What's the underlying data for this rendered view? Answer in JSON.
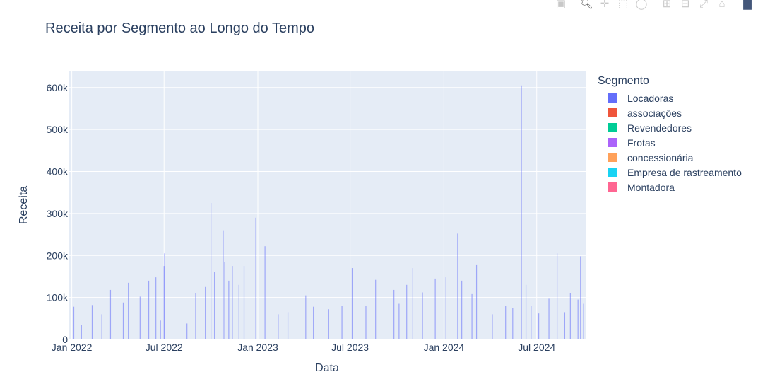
{
  "toolbar": {
    "buttons": [
      {
        "icon": "camera-icon",
        "label": "Download plot as a png"
      },
      {
        "icon": "zoom-icon",
        "label": "Zoom"
      },
      {
        "icon": "pan-icon",
        "label": "Pan"
      },
      {
        "icon": "box-select-icon",
        "label": "Box Select"
      },
      {
        "icon": "lasso-select-icon",
        "label": "Lasso Select"
      },
      {
        "icon": "zoom-in-icon",
        "label": "Zoom in"
      },
      {
        "icon": "zoom-out-icon",
        "label": "Zoom out"
      },
      {
        "icon": "autoscale-icon",
        "label": "Autoscale"
      },
      {
        "icon": "reset-axes-icon",
        "label": "Reset axes"
      },
      {
        "icon": "plotly-logo-icon",
        "label": "Produced with Plotly"
      }
    ]
  },
  "chart_data": {
    "type": "bar",
    "title": "Receita por Segmento ao Longo do Tempo",
    "xlabel": "Data",
    "ylabel": "Receita",
    "xlim": [
      "2021-12-27",
      "2024-10-05"
    ],
    "ylim": [
      0,
      640000
    ],
    "x_ticks": [
      {
        "date": "2022-01-01",
        "label": "Jan 2022"
      },
      {
        "date": "2022-07-01",
        "label": "Jul 2022"
      },
      {
        "date": "2023-01-01",
        "label": "Jan 2023"
      },
      {
        "date": "2023-07-01",
        "label": "Jul 2023"
      },
      {
        "date": "2024-01-01",
        "label": "Jan 2024"
      },
      {
        "date": "2024-07-01",
        "label": "Jul 2024"
      }
    ],
    "y_ticks": [
      {
        "value": 0,
        "label": "0"
      },
      {
        "value": 100000,
        "label": "100k"
      },
      {
        "value": 200000,
        "label": "200k"
      },
      {
        "value": 300000,
        "label": "300k"
      },
      {
        "value": 400000,
        "label": "400k"
      },
      {
        "value": 500000,
        "label": "500k"
      },
      {
        "value": 600000,
        "label": "600k"
      }
    ],
    "grid": true,
    "legend": {
      "title": "Segmento",
      "placement": "right"
    },
    "series": [
      {
        "name": "Locadoras",
        "color": "#636efa",
        "points": [
          {
            "x": "2022-01-05",
            "y": 78000
          },
          {
            "x": "2022-01-20",
            "y": 35000
          },
          {
            "x": "2022-02-10",
            "y": 82000
          },
          {
            "x": "2022-03-01",
            "y": 60000
          },
          {
            "x": "2022-03-18",
            "y": 118000
          },
          {
            "x": "2022-04-12",
            "y": 88000
          },
          {
            "x": "2022-04-22",
            "y": 135000
          },
          {
            "x": "2022-05-15",
            "y": 102000
          },
          {
            "x": "2022-06-01",
            "y": 140000
          },
          {
            "x": "2022-06-15",
            "y": 148000
          },
          {
            "x": "2022-06-24",
            "y": 45000
          },
          {
            "x": "2022-07-01",
            "y": 175000
          },
          {
            "x": "2022-07-02",
            "y": 205000
          },
          {
            "x": "2022-08-15",
            "y": 38000
          },
          {
            "x": "2022-09-01",
            "y": 110000
          },
          {
            "x": "2022-09-20",
            "y": 125000
          },
          {
            "x": "2022-10-01",
            "y": 325000
          },
          {
            "x": "2022-10-08",
            "y": 160000
          },
          {
            "x": "2022-10-25",
            "y": 260000
          },
          {
            "x": "2022-10-28",
            "y": 185000
          },
          {
            "x": "2022-11-05",
            "y": 140000
          },
          {
            "x": "2022-11-12",
            "y": 175000
          },
          {
            "x": "2022-11-25",
            "y": 130000
          },
          {
            "x": "2022-12-05",
            "y": 175000
          },
          {
            "x": "2022-12-28",
            "y": 290000
          },
          {
            "x": "2023-01-15",
            "y": 222000
          },
          {
            "x": "2023-02-10",
            "y": 60000
          },
          {
            "x": "2023-03-01",
            "y": 65000
          },
          {
            "x": "2023-04-05",
            "y": 105000
          },
          {
            "x": "2023-04-20",
            "y": 78000
          },
          {
            "x": "2023-05-20",
            "y": 72000
          },
          {
            "x": "2023-06-15",
            "y": 80000
          },
          {
            "x": "2023-07-05",
            "y": 170000
          },
          {
            "x": "2023-08-01",
            "y": 80000
          },
          {
            "x": "2023-08-20",
            "y": 142000
          },
          {
            "x": "2023-09-25",
            "y": 118000
          },
          {
            "x": "2023-10-05",
            "y": 85000
          },
          {
            "x": "2023-10-20",
            "y": 130000
          },
          {
            "x": "2023-11-01",
            "y": 170000
          },
          {
            "x": "2023-11-20",
            "y": 112000
          },
          {
            "x": "2023-12-15",
            "y": 145000
          },
          {
            "x": "2024-01-05",
            "y": 148000
          },
          {
            "x": "2024-01-28",
            "y": 252000
          },
          {
            "x": "2024-02-05",
            "y": 140000
          },
          {
            "x": "2024-02-25",
            "y": 108000
          },
          {
            "x": "2024-03-05",
            "y": 177000
          },
          {
            "x": "2024-04-05",
            "y": 60000
          },
          {
            "x": "2024-05-01",
            "y": 80000
          },
          {
            "x": "2024-05-15",
            "y": 75000
          },
          {
            "x": "2024-06-01",
            "y": 605000
          },
          {
            "x": "2024-06-10",
            "y": 130000
          },
          {
            "x": "2024-06-20",
            "y": 80000
          },
          {
            "x": "2024-07-05",
            "y": 62000
          },
          {
            "x": "2024-07-25",
            "y": 97000
          },
          {
            "x": "2024-08-10",
            "y": 205000
          },
          {
            "x": "2024-08-25",
            "y": 65000
          },
          {
            "x": "2024-09-05",
            "y": 110000
          },
          {
            "x": "2024-09-20",
            "y": 95000
          },
          {
            "x": "2024-09-25",
            "y": 198000
          },
          {
            "x": "2024-10-01",
            "y": 85000
          }
        ]
      },
      {
        "name": "associações",
        "color": "#ef553b",
        "points": []
      },
      {
        "name": "Revendedores",
        "color": "#00cc96",
        "points": []
      },
      {
        "name": "Frotas",
        "color": "#ab63fa",
        "points": []
      },
      {
        "name": "concessionária",
        "color": "#ffa15a",
        "points": []
      },
      {
        "name": "Empresa de rastreamento",
        "color": "#19d3f3",
        "points": []
      },
      {
        "name": "Montadora",
        "color": "#ff6692",
        "points": []
      }
    ]
  }
}
